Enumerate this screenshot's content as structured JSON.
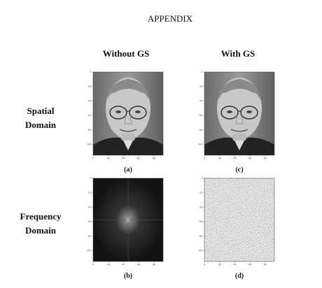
{
  "header": {
    "title": "APPENDIX"
  },
  "columns": [
    "Without GS",
    "With GS"
  ],
  "row_labels": [
    [
      "Spatial",
      "Domain"
    ],
    [
      "Frequency",
      "Domain"
    ]
  ],
  "panels": [
    {
      "caption": "(a)"
    },
    {
      "caption": "(c)"
    },
    {
      "caption": "(b)"
    },
    {
      "caption": "(d)"
    }
  ],
  "axis": {
    "yticks": [
      0,
      20,
      40,
      60,
      80,
      100
    ],
    "xticks": [
      0,
      20,
      40,
      60,
      80
    ]
  }
}
